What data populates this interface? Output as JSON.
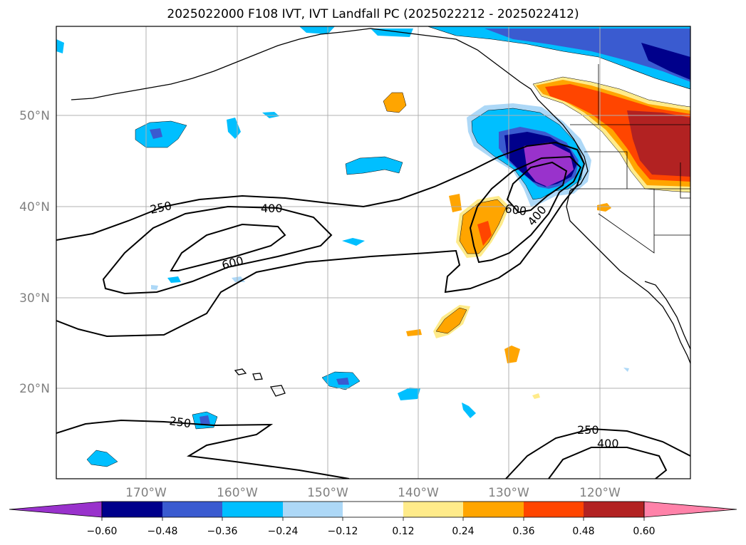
{
  "title": "2025022000 F108 IVT, IVT Landfall PC (2025022212 - 2025022412)",
  "map": {
    "lat_labels": [
      "50°N",
      "40°N",
      "30°N",
      "20°N"
    ],
    "lon_labels": [
      "170°W",
      "160°W",
      "150°W",
      "140°W",
      "130°W",
      "120°W"
    ],
    "contour_labels": [
      "250",
      "400",
      "600",
      "600",
      "400",
      "250",
      "250",
      "400"
    ]
  },
  "colorbar": {
    "colors": [
      "#9932cc",
      "#00008b",
      "#3a5bd0",
      "#00bfff",
      "#add8f7",
      "#ffffff",
      "#ffeb8a",
      "#ffa500",
      "#ff4500",
      "#b22222",
      "#ff82a9"
    ],
    "ticks": [
      "−0.60",
      "−0.48",
      "−0.36",
      "−0.24",
      "−0.12",
      "0.12",
      "0.24",
      "0.36",
      "0.48",
      "0.60"
    ]
  }
}
